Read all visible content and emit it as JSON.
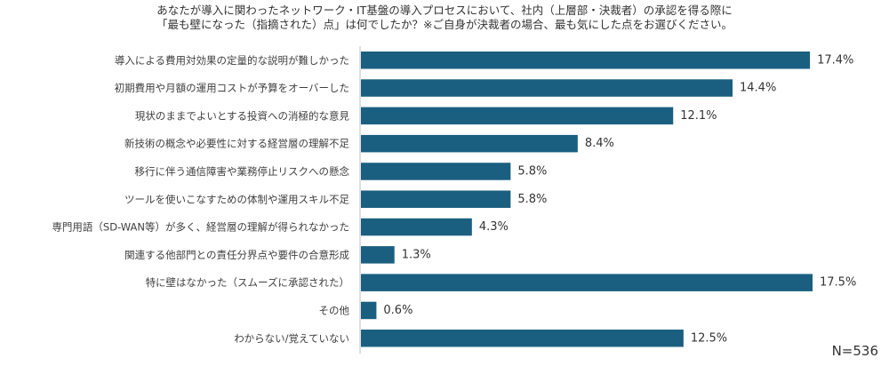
{
  "chart_data": {
    "type": "bar",
    "orientation": "horizontal",
    "title": [
      "あなたが導入に関わったネットワーク・IT基盤の導入プロセスにおいて、社内（上層部・決裁者）の承認を得る際に",
      "「最も壁になった（指摘された）点」は何でしたか？※ご自身が決裁者の場合、最も気にした点をお選びください。"
    ],
    "categories": [
      "導入による費用対効果の定量的な説明が難しかった",
      "初期費用や月額の運用コストが予算をオーバーした",
      "現状のままでよいとする投資への消極的な意見",
      "新技術の概念や必要性に対する経営層の理解不足",
      "移行に伴う通信障害や業務停止リスクへの懸念",
      "ツールを使いこなすための体制や運用スキル不足",
      "専門用語（SD-WAN等）が多く、経営層の理解が得られなかった",
      "関連する他部門との責任分界点や要件の合意形成",
      "特に壁はなかった（スムーズに承認された）",
      "その他",
      "わからない/覚えていない"
    ],
    "values": [
      17.4,
      14.4,
      12.1,
      8.4,
      5.8,
      5.8,
      4.3,
      1.3,
      17.5,
      0.6,
      12.5
    ],
    "value_suffix": "%",
    "xlim": [
      0,
      17.5
    ],
    "bar_color": "#1b5f80",
    "axis_color": "#bfbfbf",
    "grid": false,
    "sample_size": "N=536"
  }
}
